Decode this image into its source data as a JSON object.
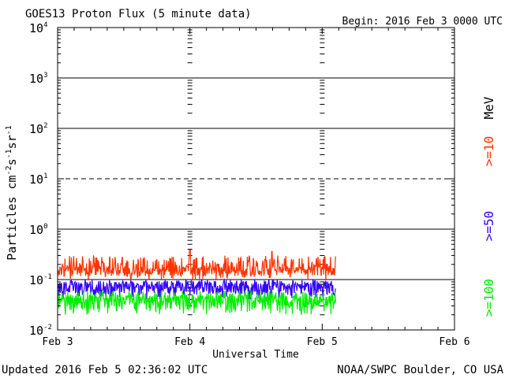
{
  "chart_data": {
    "type": "line",
    "title": "GOES13 Proton Flux (5 minute data)",
    "begin_label": "Begin: 2016 Feb 3 0000 UTC",
    "xlabel": "Universal Time",
    "ylabel": "Particles cm",
    "ylabel_parts": [
      "-2",
      "s",
      "-1",
      "sr",
      "-1"
    ],
    "x_ticks": [
      "Feb 3",
      "Feb 4",
      "Feb 5",
      "Feb 6"
    ],
    "x_range_days": [
      0,
      3
    ],
    "y_scale": "log",
    "y_range_exponents": [
      -2,
      4
    ],
    "y_ticks": [
      {
        "base": "10",
        "exp": "-2"
      },
      {
        "base": "10",
        "exp": "-1"
      },
      {
        "base": "10",
        "exp": "0"
      },
      {
        "base": "10",
        "exp": "1"
      },
      {
        "base": "10",
        "exp": "2"
      },
      {
        "base": "10",
        "exp": "3"
      },
      {
        "base": "10",
        "exp": "4"
      }
    ],
    "threshold_lines": [
      {
        "value": 0.1,
        "style": "solid"
      },
      {
        "value": 1,
        "style": "solid"
      },
      {
        "value": 10,
        "style": "dashed"
      },
      {
        "value": 100,
        "style": "solid"
      },
      {
        "value": 1000,
        "style": "solid"
      }
    ],
    "legend_unit": "MeV",
    "series": [
      {
        "name": ">=10",
        "color": "#ff3300",
        "base": 0.15,
        "min": 0.1,
        "max": 0.3,
        "spikes": [
          [
            1.0,
            0.38
          ],
          [
            1.62,
            0.36
          ]
        ]
      },
      {
        "name": ">=50",
        "color": "#3300ff",
        "base": 0.068,
        "min": 0.04,
        "max": 0.1
      },
      {
        "name": ">=100",
        "color": "#00ee00",
        "base": 0.035,
        "min": 0.02,
        "max": 0.06
      }
    ],
    "data_end_day": 2.1
  },
  "footer": {
    "updated": "Updated 2016 Feb  5 02:36:02 UTC",
    "source": "NOAA/SWPC Boulder, CO USA"
  }
}
